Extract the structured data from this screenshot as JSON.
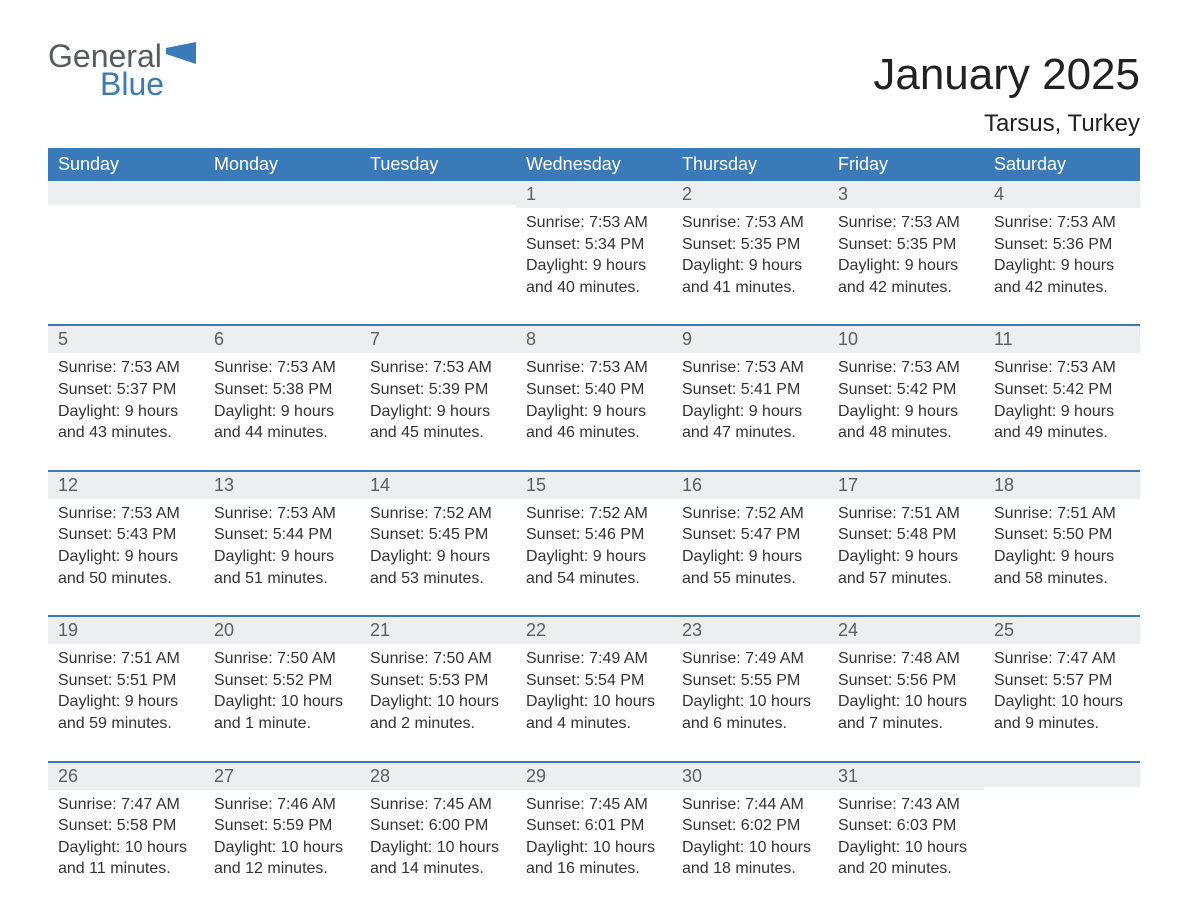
{
  "brand": {
    "word1": "General",
    "word2": "Blue",
    "flag_color": "#3a7ab8"
  },
  "title": "January 2025",
  "location": "Tarsus, Turkey",
  "colors": {
    "header_bg": "#3a7ab8",
    "header_text": "#ffffff",
    "daynum_bg": "#edeeef",
    "row_border": "#3a7ab8",
    "body_text": "#333333",
    "background": "#ffffff"
  },
  "weekdays": [
    "Sunday",
    "Monday",
    "Tuesday",
    "Wednesday",
    "Thursday",
    "Friday",
    "Saturday"
  ],
  "weeks": [
    [
      {
        "day": "",
        "sunrise": "",
        "sunset": "",
        "daylight1": "",
        "daylight2": ""
      },
      {
        "day": "",
        "sunrise": "",
        "sunset": "",
        "daylight1": "",
        "daylight2": ""
      },
      {
        "day": "",
        "sunrise": "",
        "sunset": "",
        "daylight1": "",
        "daylight2": ""
      },
      {
        "day": "1",
        "sunrise": "Sunrise: 7:53 AM",
        "sunset": "Sunset: 5:34 PM",
        "daylight1": "Daylight: 9 hours",
        "daylight2": "and 40 minutes."
      },
      {
        "day": "2",
        "sunrise": "Sunrise: 7:53 AM",
        "sunset": "Sunset: 5:35 PM",
        "daylight1": "Daylight: 9 hours",
        "daylight2": "and 41 minutes."
      },
      {
        "day": "3",
        "sunrise": "Sunrise: 7:53 AM",
        "sunset": "Sunset: 5:35 PM",
        "daylight1": "Daylight: 9 hours",
        "daylight2": "and 42 minutes."
      },
      {
        "day": "4",
        "sunrise": "Sunrise: 7:53 AM",
        "sunset": "Sunset: 5:36 PM",
        "daylight1": "Daylight: 9 hours",
        "daylight2": "and 42 minutes."
      }
    ],
    [
      {
        "day": "5",
        "sunrise": "Sunrise: 7:53 AM",
        "sunset": "Sunset: 5:37 PM",
        "daylight1": "Daylight: 9 hours",
        "daylight2": "and 43 minutes."
      },
      {
        "day": "6",
        "sunrise": "Sunrise: 7:53 AM",
        "sunset": "Sunset: 5:38 PM",
        "daylight1": "Daylight: 9 hours",
        "daylight2": "and 44 minutes."
      },
      {
        "day": "7",
        "sunrise": "Sunrise: 7:53 AM",
        "sunset": "Sunset: 5:39 PM",
        "daylight1": "Daylight: 9 hours",
        "daylight2": "and 45 minutes."
      },
      {
        "day": "8",
        "sunrise": "Sunrise: 7:53 AM",
        "sunset": "Sunset: 5:40 PM",
        "daylight1": "Daylight: 9 hours",
        "daylight2": "and 46 minutes."
      },
      {
        "day": "9",
        "sunrise": "Sunrise: 7:53 AM",
        "sunset": "Sunset: 5:41 PM",
        "daylight1": "Daylight: 9 hours",
        "daylight2": "and 47 minutes."
      },
      {
        "day": "10",
        "sunrise": "Sunrise: 7:53 AM",
        "sunset": "Sunset: 5:42 PM",
        "daylight1": "Daylight: 9 hours",
        "daylight2": "and 48 minutes."
      },
      {
        "day": "11",
        "sunrise": "Sunrise: 7:53 AM",
        "sunset": "Sunset: 5:42 PM",
        "daylight1": "Daylight: 9 hours",
        "daylight2": "and 49 minutes."
      }
    ],
    [
      {
        "day": "12",
        "sunrise": "Sunrise: 7:53 AM",
        "sunset": "Sunset: 5:43 PM",
        "daylight1": "Daylight: 9 hours",
        "daylight2": "and 50 minutes."
      },
      {
        "day": "13",
        "sunrise": "Sunrise: 7:53 AM",
        "sunset": "Sunset: 5:44 PM",
        "daylight1": "Daylight: 9 hours",
        "daylight2": "and 51 minutes."
      },
      {
        "day": "14",
        "sunrise": "Sunrise: 7:52 AM",
        "sunset": "Sunset: 5:45 PM",
        "daylight1": "Daylight: 9 hours",
        "daylight2": "and 53 minutes."
      },
      {
        "day": "15",
        "sunrise": "Sunrise: 7:52 AM",
        "sunset": "Sunset: 5:46 PM",
        "daylight1": "Daylight: 9 hours",
        "daylight2": "and 54 minutes."
      },
      {
        "day": "16",
        "sunrise": "Sunrise: 7:52 AM",
        "sunset": "Sunset: 5:47 PM",
        "daylight1": "Daylight: 9 hours",
        "daylight2": "and 55 minutes."
      },
      {
        "day": "17",
        "sunrise": "Sunrise: 7:51 AM",
        "sunset": "Sunset: 5:48 PM",
        "daylight1": "Daylight: 9 hours",
        "daylight2": "and 57 minutes."
      },
      {
        "day": "18",
        "sunrise": "Sunrise: 7:51 AM",
        "sunset": "Sunset: 5:50 PM",
        "daylight1": "Daylight: 9 hours",
        "daylight2": "and 58 minutes."
      }
    ],
    [
      {
        "day": "19",
        "sunrise": "Sunrise: 7:51 AM",
        "sunset": "Sunset: 5:51 PM",
        "daylight1": "Daylight: 9 hours",
        "daylight2": "and 59 minutes."
      },
      {
        "day": "20",
        "sunrise": "Sunrise: 7:50 AM",
        "sunset": "Sunset: 5:52 PM",
        "daylight1": "Daylight: 10 hours",
        "daylight2": "and 1 minute."
      },
      {
        "day": "21",
        "sunrise": "Sunrise: 7:50 AM",
        "sunset": "Sunset: 5:53 PM",
        "daylight1": "Daylight: 10 hours",
        "daylight2": "and 2 minutes."
      },
      {
        "day": "22",
        "sunrise": "Sunrise: 7:49 AM",
        "sunset": "Sunset: 5:54 PM",
        "daylight1": "Daylight: 10 hours",
        "daylight2": "and 4 minutes."
      },
      {
        "day": "23",
        "sunrise": "Sunrise: 7:49 AM",
        "sunset": "Sunset: 5:55 PM",
        "daylight1": "Daylight: 10 hours",
        "daylight2": "and 6 minutes."
      },
      {
        "day": "24",
        "sunrise": "Sunrise: 7:48 AM",
        "sunset": "Sunset: 5:56 PM",
        "daylight1": "Daylight: 10 hours",
        "daylight2": "and 7 minutes."
      },
      {
        "day": "25",
        "sunrise": "Sunrise: 7:47 AM",
        "sunset": "Sunset: 5:57 PM",
        "daylight1": "Daylight: 10 hours",
        "daylight2": "and 9 minutes."
      }
    ],
    [
      {
        "day": "26",
        "sunrise": "Sunrise: 7:47 AM",
        "sunset": "Sunset: 5:58 PM",
        "daylight1": "Daylight: 10 hours",
        "daylight2": "and 11 minutes."
      },
      {
        "day": "27",
        "sunrise": "Sunrise: 7:46 AM",
        "sunset": "Sunset: 5:59 PM",
        "daylight1": "Daylight: 10 hours",
        "daylight2": "and 12 minutes."
      },
      {
        "day": "28",
        "sunrise": "Sunrise: 7:45 AM",
        "sunset": "Sunset: 6:00 PM",
        "daylight1": "Daylight: 10 hours",
        "daylight2": "and 14 minutes."
      },
      {
        "day": "29",
        "sunrise": "Sunrise: 7:45 AM",
        "sunset": "Sunset: 6:01 PM",
        "daylight1": "Daylight: 10 hours",
        "daylight2": "and 16 minutes."
      },
      {
        "day": "30",
        "sunrise": "Sunrise: 7:44 AM",
        "sunset": "Sunset: 6:02 PM",
        "daylight1": "Daylight: 10 hours",
        "daylight2": "and 18 minutes."
      },
      {
        "day": "31",
        "sunrise": "Sunrise: 7:43 AM",
        "sunset": "Sunset: 6:03 PM",
        "daylight1": "Daylight: 10 hours",
        "daylight2": "and 20 minutes."
      },
      {
        "day": "",
        "sunrise": "",
        "sunset": "",
        "daylight1": "",
        "daylight2": ""
      }
    ]
  ]
}
